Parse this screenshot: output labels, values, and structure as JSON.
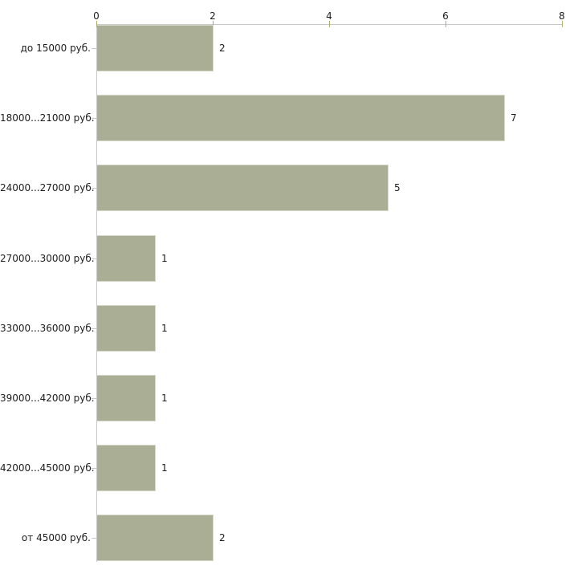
{
  "chart_data": {
    "type": "bar",
    "orientation": "horizontal",
    "categories": [
      "до 15000 руб.",
      "18000...21000 руб.",
      "24000...27000 руб.",
      "27000...30000 руб.",
      "33000...36000 руб.",
      "39000...42000 руб.",
      "42000...45000 руб.",
      "от 45000 руб."
    ],
    "values": [
      2,
      7,
      5,
      1,
      1,
      1,
      1,
      2
    ],
    "value_labels": [
      "2",
      "7",
      "5",
      "1",
      "1",
      "1",
      "1",
      "2"
    ],
    "x_ticks": [
      "0",
      "2",
      "4",
      "6",
      "8"
    ],
    "x_tick_values": [
      0,
      2,
      4,
      6,
      8
    ],
    "xlim": [
      0,
      8
    ],
    "grid": "off",
    "legend": "none",
    "axis_position": "top",
    "colors": {
      "bar_fill": "#a9ae94",
      "bar_edge": "#d6d9c8",
      "axis_line": "#c9c9c9",
      "x_tick_mark": "#b0ac6f",
      "category_tick_mark": "#c6c6c6",
      "text": "#1c1c1c",
      "background": "#ffffff"
    }
  }
}
